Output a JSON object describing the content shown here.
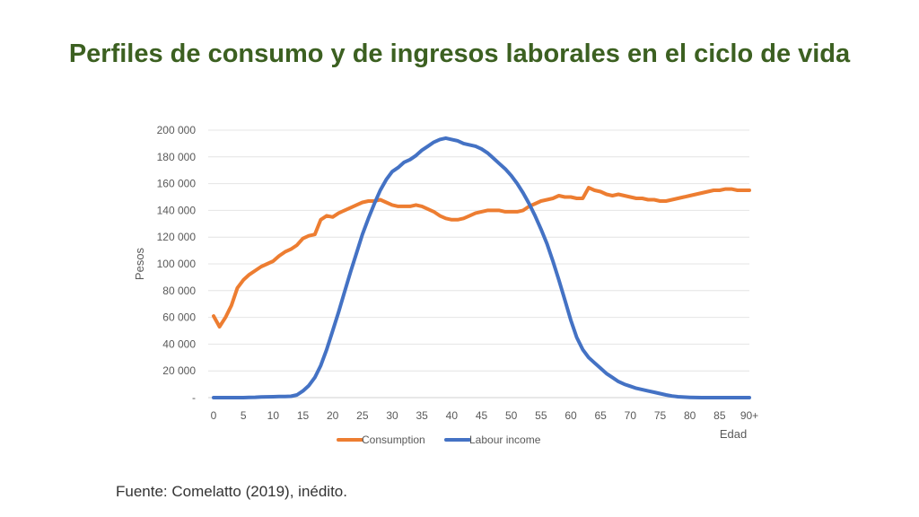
{
  "title": "Perfiles de consumo y de ingresos laborales en el ciclo de vida",
  "source": "Fuente: Comelatto (2019), inédito.",
  "chart_data": {
    "type": "line",
    "xlabel": "Edad",
    "ylabel": "Pesos",
    "xlim": [
      0,
      90
    ],
    "ylim": [
      0,
      200000
    ],
    "x_ticks": [
      "0",
      "5",
      "10",
      "15",
      "20",
      "25",
      "30",
      "35",
      "40",
      "45",
      "50",
      "55",
      "60",
      "65",
      "70",
      "75",
      "80",
      "85",
      "90+"
    ],
    "y_ticks": [
      "-",
      "20 000",
      "40 000",
      "60 000",
      "80 000",
      "100 000",
      "120 000",
      "140 000",
      "160 000",
      "180 000",
      "200 000"
    ],
    "grid": true,
    "legend_position": "bottom",
    "x": [
      0,
      1,
      2,
      3,
      4,
      5,
      6,
      7,
      8,
      9,
      10,
      11,
      12,
      13,
      14,
      15,
      16,
      17,
      18,
      19,
      20,
      21,
      22,
      23,
      24,
      25,
      26,
      27,
      28,
      29,
      30,
      31,
      32,
      33,
      34,
      35,
      36,
      37,
      38,
      39,
      40,
      41,
      42,
      43,
      44,
      45,
      46,
      47,
      48,
      49,
      50,
      51,
      52,
      53,
      54,
      55,
      56,
      57,
      58,
      59,
      60,
      61,
      62,
      63,
      64,
      65,
      66,
      67,
      68,
      69,
      70,
      71,
      72,
      73,
      74,
      75,
      76,
      77,
      78,
      79,
      80,
      81,
      82,
      83,
      84,
      85,
      86,
      87,
      88,
      89,
      90
    ],
    "series": [
      {
        "name": "Consumption",
        "color": "#ed7d31",
        "values": [
          61000,
          53000,
          60000,
          69000,
          82000,
          88000,
          92000,
          95000,
          98000,
          100000,
          102000,
          106000,
          109000,
          111000,
          114000,
          119000,
          121000,
          122000,
          133000,
          136000,
          135000,
          138000,
          140000,
          142000,
          144000,
          146000,
          147000,
          147000,
          148000,
          146000,
          144000,
          143000,
          143000,
          143000,
          144000,
          143000,
          141000,
          139000,
          136000,
          134000,
          133000,
          133000,
          134000,
          136000,
          138000,
          139000,
          140000,
          140000,
          140000,
          139000,
          139000,
          139000,
          140000,
          143000,
          145000,
          147000,
          148000,
          149000,
          151000,
          150000,
          150000,
          149000,
          149000,
          157000,
          155000,
          154000,
          152000,
          151000,
          152000,
          151000,
          150000,
          149000,
          149000,
          148000,
          148000,
          147000,
          147000,
          148000,
          149000,
          150000,
          151000,
          152000,
          153000,
          154000,
          155000,
          155000,
          156000,
          156000,
          155000,
          155000,
          155000
        ]
      },
      {
        "name": "Labour income",
        "color": "#4472c4",
        "values": [
          0,
          0,
          0,
          0,
          0,
          0,
          200,
          300,
          500,
          600,
          700,
          800,
          900,
          1000,
          2000,
          5000,
          9000,
          15000,
          24000,
          36000,
          50000,
          64000,
          79000,
          94000,
          108000,
          122000,
          134000,
          145000,
          155000,
          163000,
          169000,
          172000,
          176000,
          178000,
          181000,
          185000,
          188000,
          191000,
          193000,
          194000,
          193000,
          192000,
          190000,
          189000,
          188000,
          186000,
          183000,
          179000,
          175000,
          171000,
          166000,
          160000,
          153000,
          145000,
          136000,
          126000,
          115000,
          102000,
          88000,
          73000,
          58000,
          45000,
          36000,
          30000,
          26000,
          22000,
          18000,
          15000,
          12000,
          10000,
          8500,
          7000,
          6000,
          5000,
          4000,
          3000,
          2000,
          1200,
          700,
          400,
          200,
          100,
          0,
          0,
          0,
          0,
          0,
          0,
          0,
          0,
          0
        ]
      }
    ]
  }
}
